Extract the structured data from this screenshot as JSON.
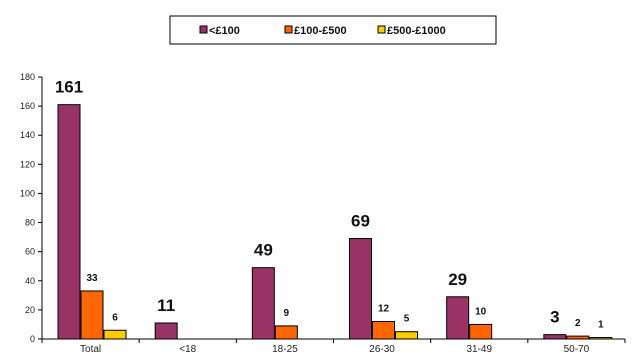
{
  "chart_data": {
    "type": "bar",
    "categories": [
      "Total",
      "<18",
      "18-25",
      "26-30",
      "31-49",
      "50-70"
    ],
    "series": [
      {
        "name": "<£100",
        "values": [
          161,
          11,
          49,
          69,
          29,
          3
        ],
        "color": "#993366"
      },
      {
        "name": "£100-£500",
        "values": [
          33,
          0,
          9,
          12,
          10,
          2
        ],
        "color": "#ff6600"
      },
      {
        "name": "£500-£1000",
        "values": [
          6,
          0,
          0,
          5,
          0,
          1
        ],
        "color": "#ffcc00"
      }
    ],
    "data_labels": [
      [
        "161",
        "11",
        "49",
        "69",
        "29",
        "3"
      ],
      [
        "33",
        "",
        "9",
        "12",
        "10",
        "2"
      ],
      [
        "6",
        "",
        "",
        "5",
        "",
        "1"
      ]
    ],
    "ylim": [
      0,
      180
    ],
    "yticks": [
      0,
      20,
      40,
      60,
      80,
      100,
      120,
      140,
      160,
      180
    ],
    "legend_position": "top-center",
    "grid": false
  }
}
